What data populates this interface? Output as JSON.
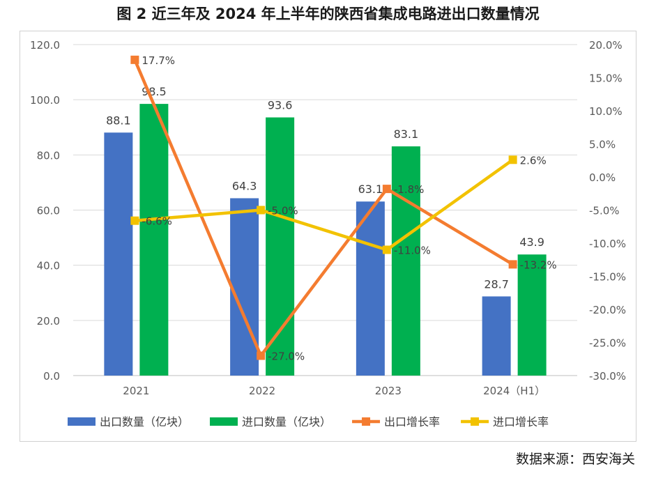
{
  "title": "图 2   近三年及 2024 年上半年的陕西省集成电路进出口数量情况",
  "source": "数据来源：西安海关",
  "chart_data": {
    "type": "bar",
    "categories": [
      "2021",
      "2022",
      "2023",
      "2024（H1）"
    ],
    "left_axis": {
      "min": 0,
      "max": 120,
      "ticks": [
        0,
        20,
        40,
        60,
        80,
        100,
        120
      ],
      "tick_labels": [
        "0.0",
        "20.0",
        "40.0",
        "60.0",
        "80.0",
        "100.0",
        "120.0"
      ]
    },
    "right_axis": {
      "min": -30,
      "max": 20,
      "ticks": [
        -30,
        -25,
        -20,
        -15,
        -10,
        -5,
        0,
        5,
        10,
        15,
        20
      ],
      "tick_labels": [
        "-30.0%",
        "-25.0%",
        "-20.0%",
        "-15.0%",
        "-10.0%",
        "-5.0%",
        "0.0%",
        "5.0%",
        "10.0%",
        "15.0%",
        "20.0%"
      ]
    },
    "grid": true,
    "legend_position": "bottom",
    "series": [
      {
        "name": "出口数量（亿块）",
        "kind": "bar",
        "axis": "left",
        "color": "#4472C4",
        "values": [
          88.1,
          64.3,
          63.1,
          28.7
        ],
        "labels": [
          "88.1",
          "64.3",
          "63.1",
          "28.7"
        ]
      },
      {
        "name": "进口数量（亿块）",
        "kind": "bar",
        "axis": "left",
        "color": "#00B050",
        "values": [
          98.5,
          93.6,
          83.1,
          43.9
        ],
        "labels": [
          "98.5",
          "93.6",
          "83.1",
          "43.9"
        ]
      },
      {
        "name": "出口增长率",
        "kind": "line",
        "axis": "right",
        "color": "#F47C30",
        "values": [
          17.7,
          -27.0,
          -1.8,
          -13.2
        ],
        "labels": [
          "17.7%",
          "-27.0%",
          "-1.8%",
          "-13.2%"
        ]
      },
      {
        "name": "进口增长率",
        "kind": "line",
        "axis": "right",
        "color": "#F2C200",
        "values": [
          -6.6,
          -5.0,
          -11.0,
          2.6
        ],
        "labels": [
          "-6.6%",
          "-5.0%",
          "-11.0%",
          "2.6%"
        ]
      }
    ]
  }
}
